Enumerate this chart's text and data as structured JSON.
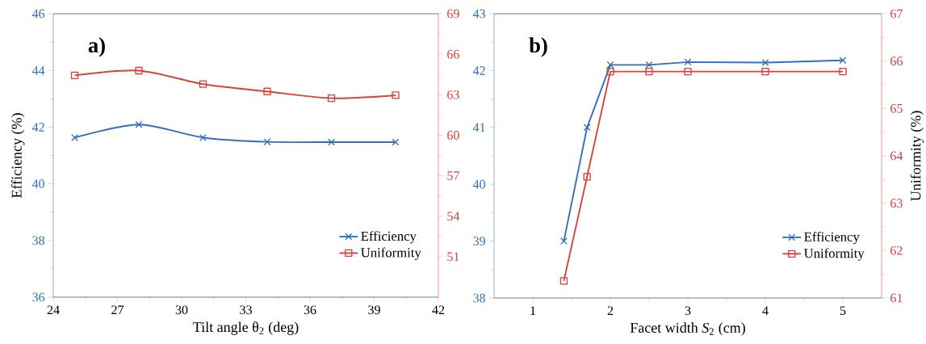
{
  "chart_data": [
    {
      "type": "line",
      "x": [
        25,
        28,
        31,
        34,
        37,
        40
      ],
      "series": [
        {
          "name": "Efficiency",
          "color": "#2f6fbf",
          "marker": "cross",
          "values": [
            41.63,
            42.09,
            41.63,
            41.48,
            41.47,
            41.47
          ]
        },
        {
          "name": "Uniformity",
          "color": "#d9403a",
          "marker": "square",
          "axis": "y2",
          "values": [
            64.43,
            64.78,
            63.79,
            63.24,
            62.74,
            62.96
          ]
        }
      ],
      "xlabel": "Tilt angle θ$_{2}$ (deg)",
      "ylabel": "Efficiency (%)",
      "xlim": [
        24,
        42
      ],
      "xticks": [
        24,
        27,
        30,
        33,
        36,
        39,
        42
      ],
      "ylim": [
        36,
        46
      ],
      "yticks": [
        36,
        38,
        40,
        42,
        44,
        46
      ],
      "y2lim": [
        48,
        69
      ],
      "y2ticks": [
        51,
        54,
        57,
        60,
        63,
        66,
        69
      ],
      "legend": "bottom right",
      "annotations": [
        "a)"
      ]
    },
    {
      "type": "line",
      "x": [
        1.4,
        1.7,
        2,
        2.5,
        3,
        4,
        5
      ],
      "series": [
        {
          "name": "Efficiency",
          "color": "#2f6fbf",
          "marker": "cross",
          "values": [
            39.0,
            41.0,
            42.1,
            42.1,
            42.15,
            42.14,
            42.18
          ]
        },
        {
          "name": "Uniformity",
          "color": "#d9403a",
          "marker": "square",
          "axis": "y2",
          "values": [
            61.36,
            63.56,
            65.78,
            65.78,
            65.78,
            65.78,
            65.78
          ]
        }
      ],
      "xlabel": "Facet width *S*$_{2}$ (cm)",
      "y2label": "Uniformity (%)",
      "xlim": [
        0.5,
        5.5
      ],
      "xticks": [
        1,
        2,
        3,
        4,
        5
      ],
      "ylim": [
        38,
        43
      ],
      "yticks": [
        38,
        39,
        40,
        41,
        42,
        43
      ],
      "y2lim": [
        61,
        67
      ],
      "y2ticks": [
        61,
        62,
        63,
        64,
        65,
        66,
        67
      ],
      "legend": "bottom right",
      "annotations": [
        "b)"
      ]
    }
  ]
}
